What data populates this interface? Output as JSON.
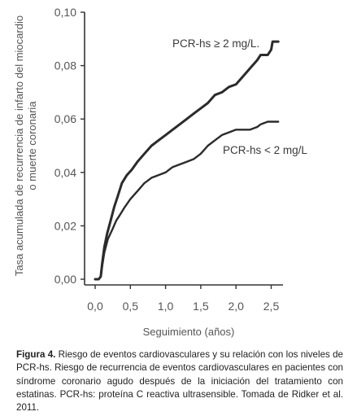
{
  "chart_data": {
    "type": "line",
    "title": "",
    "xlabel": "Seguimiento (años)",
    "ylabel_line1": "Tasa acumulada de recurrencia de infarto del miocardio",
    "ylabel_line2": "o muerte coronaria",
    "xlim": [
      0,
      2.6
    ],
    "ylim": [
      0,
      0.1
    ],
    "x_ticks": [
      "0,0",
      "0,5",
      "1,0",
      "1,5",
      "2,0",
      "2,5"
    ],
    "x_tick_values": [
      0,
      0.5,
      1.0,
      1.5,
      2.0,
      2.5
    ],
    "y_ticks": [
      "0,00",
      "0,02",
      "0,04",
      "0,06",
      "0,08",
      "0,10"
    ],
    "y_tick_values": [
      0,
      0.02,
      0.04,
      0.06,
      0.08,
      0.1
    ],
    "grid": false,
    "series": [
      {
        "name": "PCR-hs ≥ 2 mg/L.",
        "color": "#2b2b2b",
        "points": [
          [
            0.0,
            0.0
          ],
          [
            0.05,
            0.0
          ],
          [
            0.08,
            0.001
          ],
          [
            0.1,
            0.006
          ],
          [
            0.13,
            0.012
          ],
          [
            0.17,
            0.017
          ],
          [
            0.22,
            0.022
          ],
          [
            0.27,
            0.027
          ],
          [
            0.32,
            0.031
          ],
          [
            0.38,
            0.036
          ],
          [
            0.45,
            0.039
          ],
          [
            0.52,
            0.041
          ],
          [
            0.6,
            0.044
          ],
          [
            0.7,
            0.047
          ],
          [
            0.8,
            0.05
          ],
          [
            0.9,
            0.052
          ],
          [
            1.0,
            0.054
          ],
          [
            1.1,
            0.056
          ],
          [
            1.2,
            0.058
          ],
          [
            1.3,
            0.06
          ],
          [
            1.4,
            0.062
          ],
          [
            1.5,
            0.064
          ],
          [
            1.6,
            0.066
          ],
          [
            1.7,
            0.069
          ],
          [
            1.8,
            0.07
          ],
          [
            1.9,
            0.072
          ],
          [
            2.0,
            0.073
          ],
          [
            2.1,
            0.076
          ],
          [
            2.2,
            0.079
          ],
          [
            2.3,
            0.082
          ],
          [
            2.35,
            0.084
          ],
          [
            2.45,
            0.084
          ],
          [
            2.5,
            0.086
          ],
          [
            2.52,
            0.089
          ],
          [
            2.6,
            0.089
          ]
        ]
      },
      {
        "name": "PCR-hs < 2 mg/L",
        "color": "#2b2b2b",
        "points": [
          [
            0.0,
            0.0
          ],
          [
            0.05,
            0.0
          ],
          [
            0.08,
            0.001
          ],
          [
            0.1,
            0.005
          ],
          [
            0.13,
            0.01
          ],
          [
            0.18,
            0.015
          ],
          [
            0.25,
            0.019
          ],
          [
            0.3,
            0.022
          ],
          [
            0.35,
            0.024
          ],
          [
            0.42,
            0.027
          ],
          [
            0.5,
            0.03
          ],
          [
            0.6,
            0.033
          ],
          [
            0.7,
            0.036
          ],
          [
            0.8,
            0.038
          ],
          [
            0.9,
            0.039
          ],
          [
            1.0,
            0.04
          ],
          [
            1.1,
            0.042
          ],
          [
            1.2,
            0.043
          ],
          [
            1.3,
            0.044
          ],
          [
            1.4,
            0.045
          ],
          [
            1.5,
            0.047
          ],
          [
            1.6,
            0.05
          ],
          [
            1.7,
            0.052
          ],
          [
            1.8,
            0.054
          ],
          [
            1.9,
            0.055
          ],
          [
            2.0,
            0.056
          ],
          [
            2.2,
            0.056
          ],
          [
            2.3,
            0.057
          ],
          [
            2.35,
            0.058
          ],
          [
            2.45,
            0.059
          ],
          [
            2.6,
            0.059
          ]
        ]
      }
    ]
  },
  "caption": {
    "figure_label": "Figura 4.",
    "text": " Riesgo de eventos cardiovasculares y su relación con los niveles de PCR-hs. Riesgo de recurrencia de eventos cardiovasculares en pacientes con síndrome coronario agudo después de la iniciación del tratamiento con estatinas. PCR-hs: proteína C reactiva ultrasensible. Tomada de Ridker et al. 2011."
  }
}
